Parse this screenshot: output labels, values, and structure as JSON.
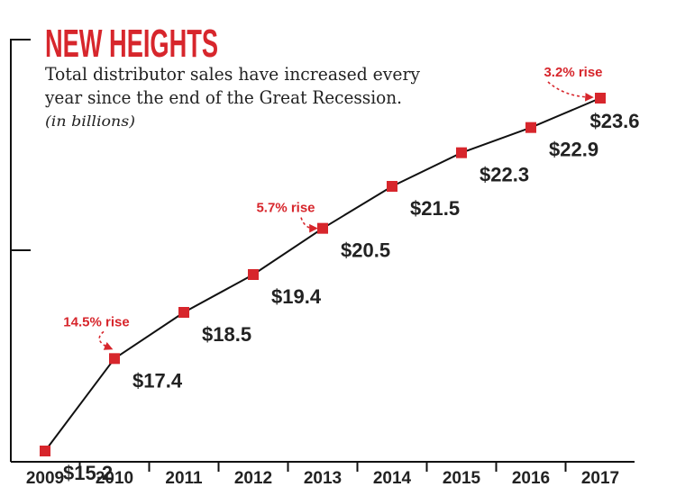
{
  "chart_data": {
    "type": "line",
    "title": "NEW HEIGHTS",
    "subtitle_lines": [
      "Total distributor sales have increased every",
      "year since the end of the Great Recession."
    ],
    "unit_note": "(in billions)",
    "categories": [
      "2009",
      "2010",
      "2011",
      "2012",
      "2013",
      "2014",
      "2015",
      "2016",
      "2017"
    ],
    "values": [
      15.2,
      17.4,
      18.5,
      19.4,
      20.5,
      21.5,
      22.3,
      22.9,
      23.6
    ],
    "value_labels": [
      "$15.2",
      "$17.4",
      "$18.5",
      "$19.4",
      "$20.5",
      "$21.5",
      "$22.3",
      "$22.9",
      "$23.6"
    ],
    "ylim": [
      15.2,
      23.6
    ],
    "annotations": [
      {
        "category": "2010",
        "text": "14.5% rise"
      },
      {
        "category": "2013",
        "text": "5.7% rise"
      },
      {
        "category": "2017",
        "text": "3.2% rise"
      }
    ],
    "colors": {
      "title": "#d7262c",
      "marker": "#d7262c",
      "line": "#111111",
      "annotation": "#d7262c",
      "text": "#222222"
    }
  }
}
